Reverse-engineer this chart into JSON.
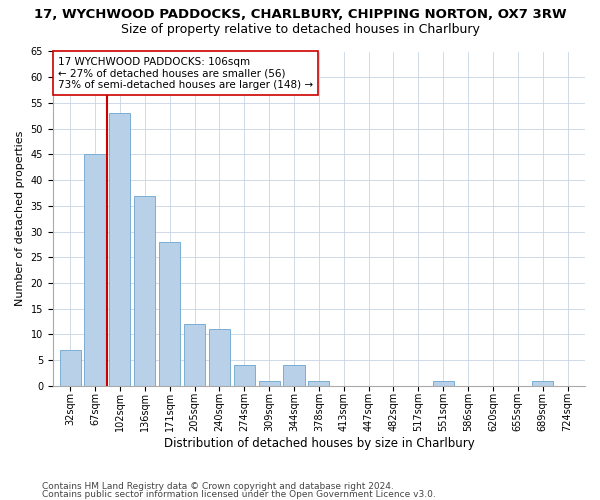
{
  "title1": "17, WYCHWOOD PADDOCKS, CHARLBURY, CHIPPING NORTON, OX7 3RW",
  "title2": "Size of property relative to detached houses in Charlbury",
  "xlabel": "Distribution of detached houses by size in Charlbury",
  "ylabel": "Number of detached properties",
  "categories": [
    "32sqm",
    "67sqm",
    "102sqm",
    "136sqm",
    "171sqm",
    "205sqm",
    "240sqm",
    "274sqm",
    "309sqm",
    "344sqm",
    "378sqm",
    "413sqm",
    "447sqm",
    "482sqm",
    "517sqm",
    "551sqm",
    "586sqm",
    "620sqm",
    "655sqm",
    "689sqm",
    "724sqm"
  ],
  "values": [
    7,
    45,
    53,
    37,
    28,
    12,
    11,
    4,
    1,
    4,
    1,
    0,
    0,
    0,
    0,
    1,
    0,
    0,
    0,
    1,
    0
  ],
  "bar_color": "#b8d0e8",
  "bar_edge_color": "#7aadd4",
  "property_line_index": 2,
  "property_line_color": "#cc0000",
  "annotation_line1": "17 WYCHWOOD PADDOCKS: 106sqm",
  "annotation_line2": "← 27% of detached houses are smaller (56)",
  "annotation_line3": "73% of semi-detached houses are larger (148) →",
  "annotation_box_color": "#ffffff",
  "annotation_box_edge": "#cc0000",
  "ylim": [
    0,
    65
  ],
  "yticks": [
    0,
    5,
    10,
    15,
    20,
    25,
    30,
    35,
    40,
    45,
    50,
    55,
    60,
    65
  ],
  "footer1": "Contains HM Land Registry data © Crown copyright and database right 2024.",
  "footer2": "Contains public sector information licensed under the Open Government Licence v3.0.",
  "bg_color": "#ffffff",
  "grid_color": "#c8d4e4",
  "title1_fontsize": 9.5,
  "title2_fontsize": 9,
  "xlabel_fontsize": 8.5,
  "ylabel_fontsize": 8,
  "tick_fontsize": 7,
  "annotation_fontsize": 7.5,
  "footer_fontsize": 6.5
}
